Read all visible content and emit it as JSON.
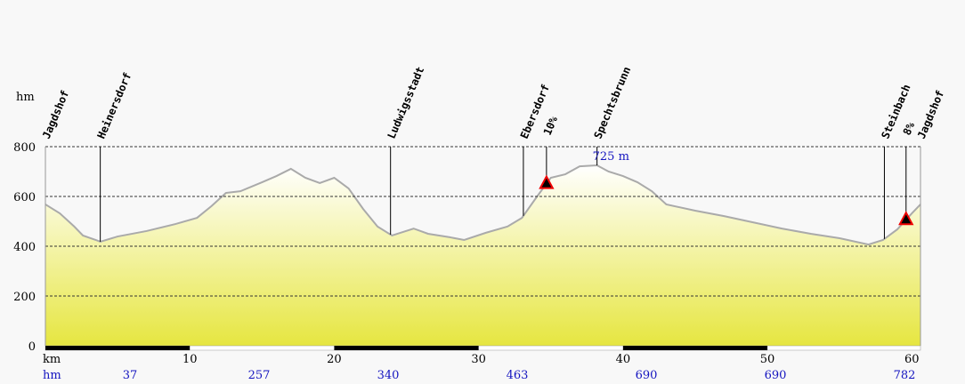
{
  "chart_data": {
    "type": "area",
    "y_label": "hm",
    "x_label": "km",
    "x": [
      0,
      1,
      2,
      2.6,
      3.5,
      3.8,
      5,
      7,
      9,
      10.5,
      11.5,
      12.5,
      13.5,
      15,
      16,
      17,
      18,
      19,
      20,
      21,
      22,
      23,
      24,
      25.5,
      26.5,
      28,
      29,
      30.5,
      32,
      33,
      34,
      35,
      36,
      37,
      38.2,
      39,
      40,
      41,
      42,
      43,
      45,
      47,
      49,
      51,
      53,
      55,
      57,
      58,
      59,
      60,
      60.6
    ],
    "values": [
      568,
      532,
      479,
      443,
      425,
      418,
      439,
      461,
      489,
      514,
      561,
      614,
      621,
      657,
      682,
      711,
      675,
      654,
      675,
      632,
      550,
      479,
      443,
      471,
      450,
      436,
      425,
      454,
      479,
      514,
      596,
      675,
      689,
      721,
      725,
      700,
      682,
      657,
      621,
      568,
      543,
      521,
      496,
      471,
      450,
      432,
      407,
      425,
      468,
      532,
      568
    ],
    "xlim": [
      0,
      60.6
    ],
    "ylim": [
      0,
      800
    ],
    "xticks": [
      10,
      20,
      30,
      40,
      50,
      60
    ],
    "yticks": [
      0,
      200,
      400,
      600,
      800
    ],
    "grid": true,
    "line_color": "#aaaaaa",
    "fill_color": "#e6e640",
    "places": [
      {
        "name": "Jagdshof",
        "x": 0
      },
      {
        "name": "Heinersdorf",
        "x": 3.8
      },
      {
        "name": "Ludwigsstadt",
        "x": 23.9
      },
      {
        "name": "Ebersdorf",
        "x": 33.1
      },
      {
        "name": "Spechtsbrunn",
        "x": 38.2
      },
      {
        "name": "Steinbach",
        "x": 58.1
      },
      {
        "name": "Jagdshof",
        "x": 60.6
      }
    ],
    "grades": [
      {
        "label": "10%",
        "x": 34.7
      },
      {
        "label": "8%",
        "x": 59.6
      }
    ],
    "annotation": {
      "label": "725 m",
      "x": 38.2,
      "y": 725
    },
    "climb_label": "hm",
    "climbs": [
      37,
      257,
      340,
      463,
      690,
      690,
      782
    ]
  }
}
